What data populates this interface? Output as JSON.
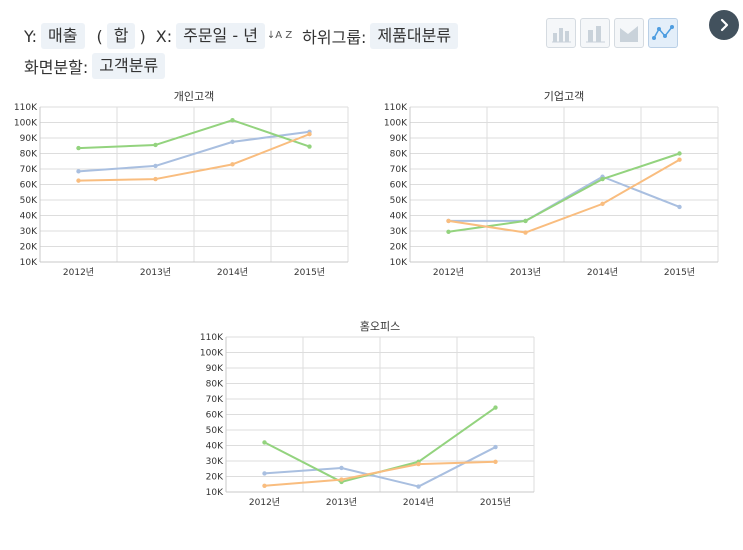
{
  "controls": {
    "y_label": "Y:",
    "y_value": "매출",
    "agg_open": "(",
    "agg_value": "합",
    "agg_close": ")",
    "x_label": "X:",
    "x_value": "주문일 - 년",
    "sort_icon_text": "↓A Z",
    "subgroup_label": "하위그룹:",
    "subgroup_value": "제품대분류",
    "split_label": "화면분할:",
    "split_value": "고객분류"
  },
  "chart_types": [
    "bar-chart-icon",
    "stacked-bar-chart-icon",
    "area-chart-icon",
    "line-chart-icon"
  ],
  "colors": {
    "blue": "#a9bfe0",
    "green": "#93d37e",
    "orange": "#f9bd7f"
  },
  "chart_data": [
    {
      "type": "line",
      "title": "개인고객",
      "categories": [
        "2012년",
        "2013년",
        "2014년",
        "2015년"
      ],
      "yticks": [
        "10K",
        "20K",
        "30K",
        "40K",
        "50K",
        "60K",
        "70K",
        "80K",
        "90K",
        "100K",
        "110K"
      ],
      "ylim": [
        10000,
        110000
      ],
      "series": [
        {
          "color": "#a9bfe0",
          "values": [
            68500,
            72000,
            87500,
            94000
          ]
        },
        {
          "color": "#93d37e",
          "values": [
            83500,
            85500,
            101500,
            84500
          ]
        },
        {
          "color": "#f9bd7f",
          "values": [
            62500,
            63500,
            73000,
            92500
          ]
        }
      ]
    },
    {
      "type": "line",
      "title": "기업고객",
      "categories": [
        "2012년",
        "2013년",
        "2014년",
        "2015년"
      ],
      "yticks": [
        "10K",
        "20K",
        "30K",
        "40K",
        "50K",
        "60K",
        "70K",
        "80K",
        "90K",
        "100K",
        "110K"
      ],
      "ylim": [
        10000,
        110000
      ],
      "series": [
        {
          "color": "#a9bfe0",
          "values": [
            36500,
            36500,
            65000,
            45500
          ]
        },
        {
          "color": "#93d37e",
          "values": [
            29500,
            36500,
            63500,
            80000
          ]
        },
        {
          "color": "#f9bd7f",
          "values": [
            36500,
            29000,
            47500,
            76000
          ]
        }
      ]
    },
    {
      "type": "line",
      "title": "홈오피스",
      "categories": [
        "2012년",
        "2013년",
        "2014년",
        "2015년"
      ],
      "yticks": [
        "10K",
        "20K",
        "30K",
        "40K",
        "50K",
        "60K",
        "70K",
        "80K",
        "90K",
        "100K",
        "110K"
      ],
      "ylim": [
        10000,
        110000
      ],
      "series": [
        {
          "color": "#a9bfe0",
          "values": [
            22000,
            25500,
            13500,
            39000
          ]
        },
        {
          "color": "#93d37e",
          "values": [
            42000,
            16500,
            29500,
            64500
          ]
        },
        {
          "color": "#f9bd7f",
          "values": [
            14000,
            18000,
            28000,
            29500
          ]
        }
      ]
    }
  ]
}
